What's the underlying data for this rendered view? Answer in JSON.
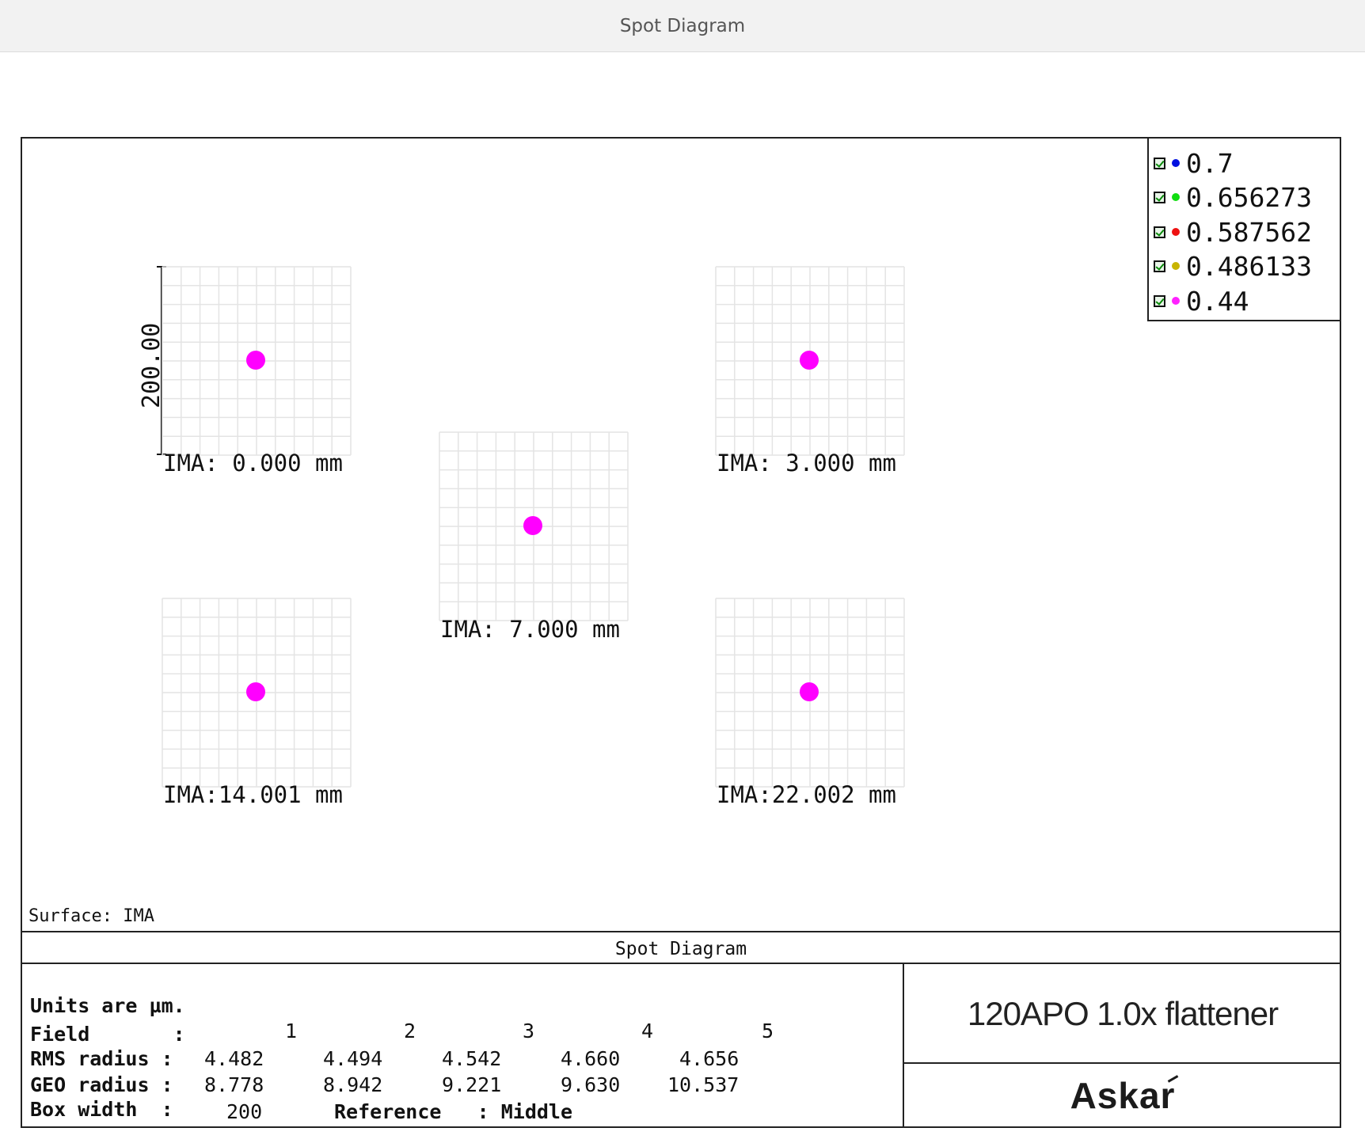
{
  "page_title": "Spot Diagram",
  "colors": {
    "spot": "#ff00ff",
    "grid": "#e4e4e4",
    "frame": "#222222",
    "legend_dots": [
      "#0010e0",
      "#11dd11",
      "#ee1111",
      "#c8b400",
      "#ff22ff"
    ]
  },
  "scale_bar_label": "200.00",
  "fields": [
    {
      "label": "IMA: 0.000  mm"
    },
    {
      "label": "IMA: 3.000  mm"
    },
    {
      "label": "IMA: 7.000  mm"
    },
    {
      "label": "IMA:14.001  mm"
    },
    {
      "label": "IMA:22.002  mm"
    }
  ],
  "legend": [
    {
      "label": "0.7",
      "color": "#0010e0"
    },
    {
      "label": "0.656273",
      "color": "#11dd11"
    },
    {
      "label": "0.587562",
      "color": "#ee1111"
    },
    {
      "label": "0.486133",
      "color": "#c8b400"
    },
    {
      "label": "0.44",
      "color": "#ff22ff"
    }
  ],
  "surface_label": "Surface: IMA",
  "table": {
    "title": "Spot Diagram",
    "units": "Units are µm.",
    "field_label": "Field       :",
    "field_numbers": [
      "1",
      "2",
      "3",
      "4",
      "5"
    ],
    "rms_label": "RMS radius :",
    "rms_values": [
      "4.482",
      "4.494",
      "4.542",
      "4.660",
      "4.656"
    ],
    "geo_label": "GEO radius :",
    "geo_values": [
      "8.778",
      "8.942",
      "9.221",
      "9.630",
      "10.537"
    ],
    "box_label": "Box width  :",
    "box_value": "200",
    "reference": "Reference   : Middle"
  },
  "lens_title": "120APO 1.0x flattener",
  "brand": "Askar"
}
